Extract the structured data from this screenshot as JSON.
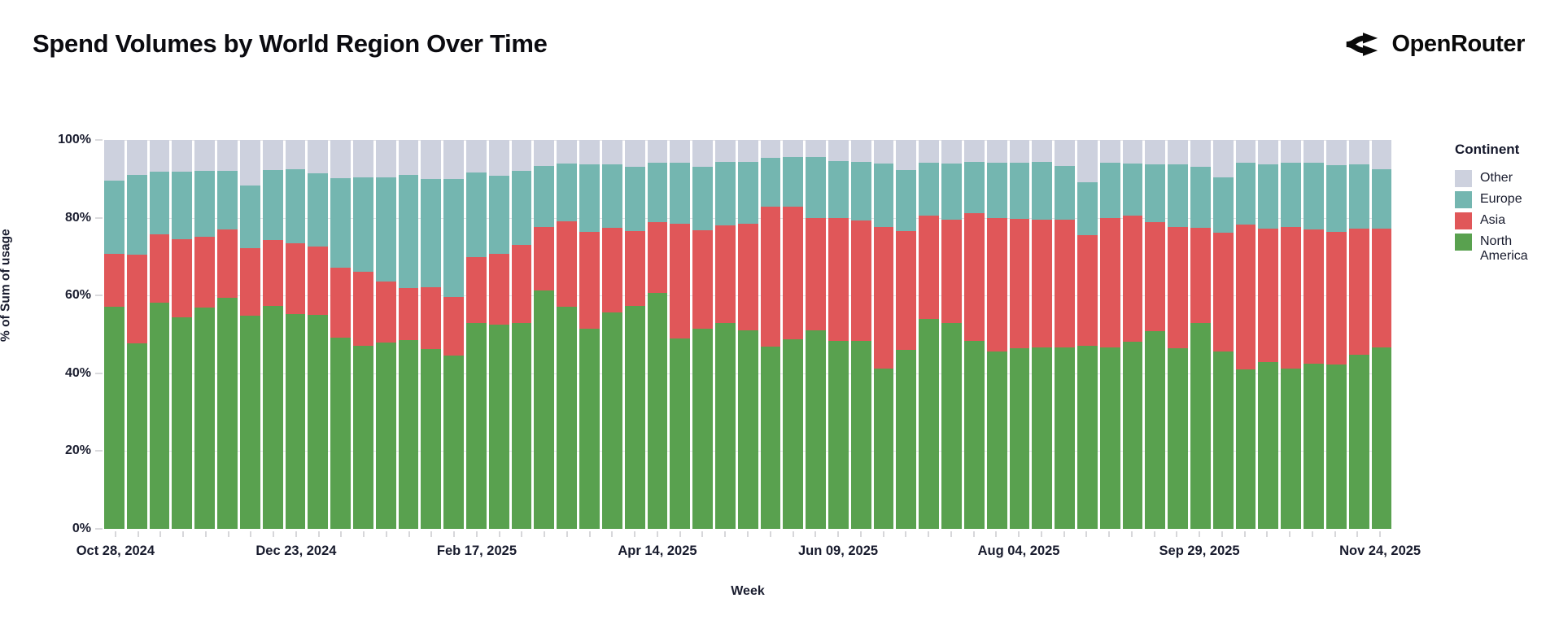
{
  "header": {
    "title": "Spend Volumes by World Region Over Time",
    "brand": "OpenRouter"
  },
  "y_axis": {
    "title": "% of Sum of usage",
    "ticks": [
      0,
      20,
      40,
      60,
      80,
      100
    ]
  },
  "x_axis": {
    "title": "Week",
    "tick_indices": [
      0,
      8,
      16,
      24,
      32,
      40,
      48,
      56
    ]
  },
  "legend": {
    "title": "Continent",
    "items": [
      {
        "label": "Other",
        "color": "#cdd1de"
      },
      {
        "label": "Europe",
        "color": "#74b6b0"
      },
      {
        "label": "Asia",
        "color": "#e05759"
      },
      {
        "label": "North America",
        "color": "#59a14f"
      }
    ]
  },
  "chart_data": {
    "type": "bar",
    "stacked": true,
    "normalized_percent": true,
    "title": "Spend Volumes by World Region Over Time",
    "xlabel": "Week",
    "ylabel": "% of Sum of usage",
    "ylim": [
      0,
      100
    ],
    "grid": "horizontal",
    "legend_position": "right",
    "x": [
      "Oct 28, 2024",
      "Nov 04, 2024",
      "Nov 11, 2024",
      "Nov 18, 2024",
      "Nov 25, 2024",
      "Dec 02, 2024",
      "Dec 09, 2024",
      "Dec 16, 2024",
      "Dec 23, 2024",
      "Dec 30, 2024",
      "Jan 06, 2025",
      "Jan 13, 2025",
      "Jan 20, 2025",
      "Jan 27, 2025",
      "Feb 03, 2025",
      "Feb 10, 2025",
      "Feb 17, 2025",
      "Feb 24, 2025",
      "Mar 03, 2025",
      "Mar 10, 2025",
      "Mar 17, 2025",
      "Mar 24, 2025",
      "Mar 31, 2025",
      "Apr 07, 2025",
      "Apr 14, 2025",
      "Apr 21, 2025",
      "Apr 28, 2025",
      "May 05, 2025",
      "May 12, 2025",
      "May 19, 2025",
      "May 26, 2025",
      "Jun 02, 2025",
      "Jun 09, 2025",
      "Jun 16, 2025",
      "Jun 23, 2025",
      "Jun 30, 2025",
      "Jul 07, 2025",
      "Jul 14, 2025",
      "Jul 21, 2025",
      "Jul 28, 2025",
      "Aug 04, 2025",
      "Aug 11, 2025",
      "Aug 18, 2025",
      "Aug 25, 2025",
      "Sep 01, 2025",
      "Sep 08, 2025",
      "Sep 15, 2025",
      "Sep 22, 2025",
      "Sep 29, 2025",
      "Oct 06, 2025",
      "Oct 13, 2025",
      "Oct 20, 2025",
      "Oct 27, 2025",
      "Nov 03, 2025",
      "Nov 10, 2025",
      "Nov 17, 2025",
      "Nov 24, 2025"
    ],
    "x_tick_labels": [
      "Oct 28, 2024",
      "Dec 23, 2024",
      "Feb 17, 2025",
      "Apr 14, 2025",
      "Jun 09, 2025",
      "Aug 04, 2025",
      "Sep 29, 2025",
      "Nov 24, 2025"
    ],
    "series": [
      {
        "name": "North America",
        "color": "#59a14f",
        "stack_order": "bottom",
        "values": [
          57.1,
          47.6,
          58.1,
          54.3,
          56.9,
          59.4,
          54.8,
          57.3,
          55.3,
          55.0,
          49.2,
          47.1,
          48.0,
          48.5,
          46.2,
          44.5,
          53.0,
          52.5,
          53.0,
          61.2,
          57.1,
          51.5,
          55.7,
          57.4,
          60.7,
          49.0,
          51.5,
          52.9,
          51.1,
          46.9,
          48.7,
          51.1,
          48.3,
          48.3,
          41.2,
          46.1,
          53.9,
          53.0,
          48.3,
          45.7,
          46.4,
          46.6,
          46.6,
          47.1,
          46.6,
          48.2,
          50.8,
          46.4,
          52.9,
          45.5,
          41.0,
          42.9,
          41.2,
          42.5,
          42.2,
          44.8,
          46.6
        ]
      },
      {
        "name": "Asia",
        "color": "#e05759",
        "stack_order": "second",
        "values": [
          13.6,
          22.8,
          17.7,
          20.1,
          18.2,
          17.6,
          17.4,
          17.0,
          18.2,
          17.6,
          18.0,
          19.0,
          15.5,
          13.4,
          15.9,
          15.1,
          16.8,
          18.3,
          20.1,
          16.5,
          22.0,
          24.9,
          21.7,
          19.2,
          18.1,
          29.5,
          25.2,
          25.2,
          27.3,
          36.0,
          34.1,
          28.9,
          31.7,
          30.9,
          36.5,
          30.5,
          26.7,
          26.6,
          32.8,
          34.3,
          33.4,
          33.0,
          32.8,
          28.5,
          33.3,
          32.3,
          28.1,
          31.3,
          24.4,
          30.6,
          37.2,
          34.2,
          36.5,
          34.5,
          34.1,
          32.5,
          30.5
        ]
      },
      {
        "name": "Europe",
        "color": "#74b6b0",
        "stack_order": "third",
        "values": [
          18.8,
          20.7,
          16.0,
          17.4,
          16.9,
          15.0,
          16.1,
          18.0,
          19.0,
          18.8,
          23.0,
          24.3,
          26.9,
          29.0,
          27.8,
          30.3,
          21.8,
          19.9,
          19.0,
          15.7,
          14.8,
          17.3,
          16.3,
          16.6,
          15.4,
          15.6,
          16.3,
          16.2,
          15.9,
          12.6,
          12.8,
          15.6,
          14.6,
          15.2,
          16.2,
          15.7,
          13.5,
          14.3,
          13.3,
          14.1,
          14.4,
          14.8,
          14.0,
          13.6,
          14.2,
          13.4,
          14.8,
          16.0,
          15.7,
          14.3,
          16.0,
          16.6,
          16.4,
          17.1,
          17.2,
          16.4,
          15.4
        ]
      },
      {
        "name": "Other",
        "color": "#cdd1de",
        "stack_order": "top",
        "values": [
          10.5,
          8.9,
          8.2,
          8.2,
          8.0,
          8.0,
          11.7,
          7.7,
          7.5,
          8.6,
          9.8,
          9.6,
          9.6,
          9.1,
          10.1,
          10.1,
          8.4,
          9.3,
          7.9,
          6.6,
          6.1,
          6.3,
          6.3,
          6.8,
          5.8,
          5.9,
          7.0,
          5.7,
          5.7,
          4.5,
          4.4,
          4.4,
          5.4,
          5.6,
          6.1,
          7.7,
          5.9,
          6.1,
          5.6,
          5.9,
          5.8,
          5.6,
          6.6,
          10.8,
          5.9,
          6.1,
          6.3,
          6.3,
          7.0,
          9.6,
          5.8,
          6.3,
          5.9,
          5.9,
          6.5,
          6.3,
          7.5
        ]
      }
    ]
  }
}
